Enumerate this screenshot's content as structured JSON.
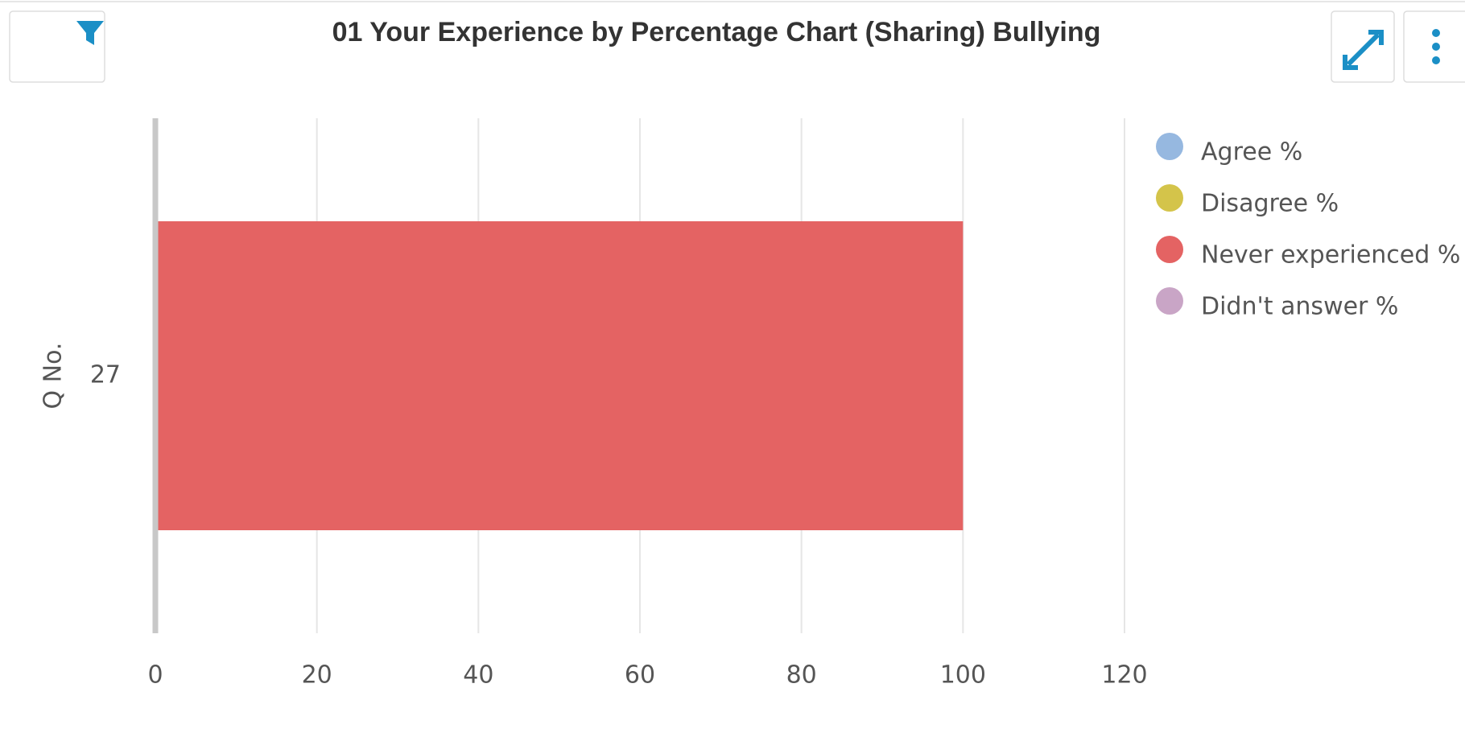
{
  "chart_data": {
    "type": "stacked_barh",
    "title": "01 Your Experience by Percentage Chart (Sharing) Bullying",
    "ylabel": "Q No.",
    "categories": [
      "27"
    ],
    "series": [
      {
        "name": "Agree %",
        "color": "#96b8e0",
        "values": [
          0
        ]
      },
      {
        "name": "Disagree %",
        "color": "#d4c44a",
        "values": [
          0
        ]
      },
      {
        "name": "Never experienced %",
        "color": "#e46363",
        "values": [
          100
        ]
      },
      {
        "name": "Didn't answer %",
        "color": "#c9a5c6",
        "values": [
          0
        ]
      }
    ],
    "xlim": [
      0,
      120
    ],
    "xticks": [
      0,
      20,
      40,
      60,
      80,
      100,
      120
    ],
    "grid": true,
    "legend": "right"
  }
}
